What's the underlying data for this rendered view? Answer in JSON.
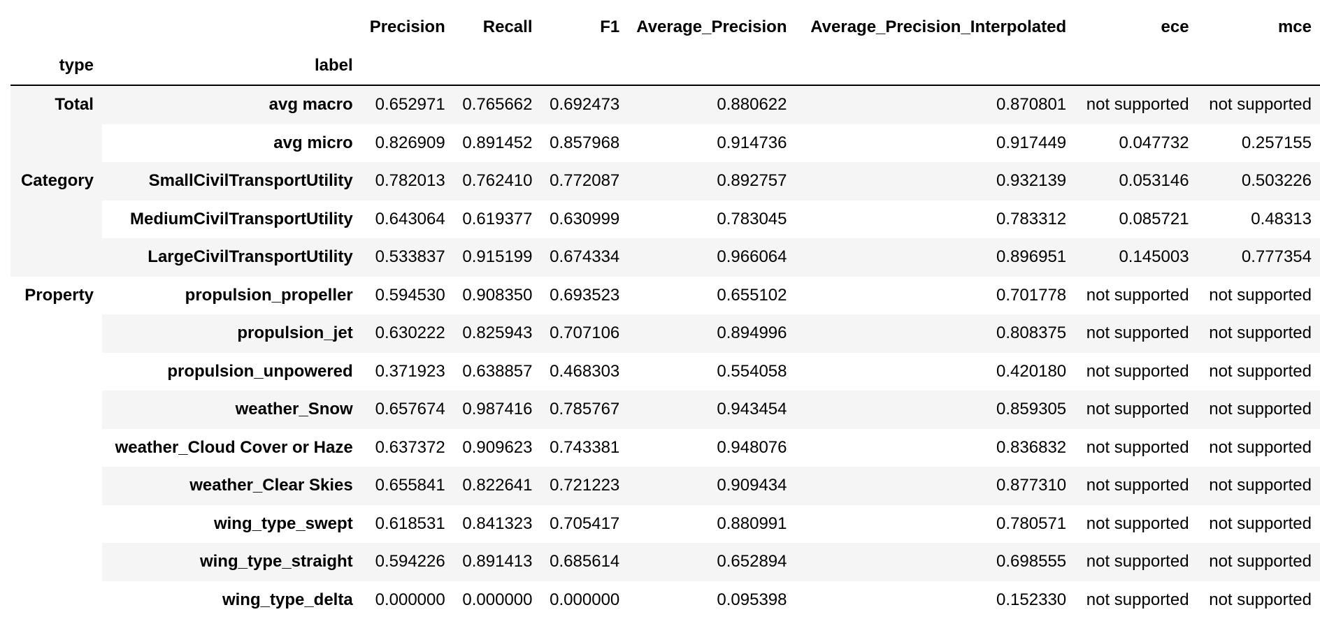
{
  "columns": [
    "Precision",
    "Recall",
    "F1",
    "Average_Precision",
    "Average_Precision_Interpolated",
    "ece",
    "mce"
  ],
  "index_names": [
    "type",
    "label"
  ],
  "groups": [
    {
      "type": "Total",
      "rows": [
        {
          "label": "avg macro",
          "values": [
            "0.652971",
            "0.765662",
            "0.692473",
            "0.880622",
            "0.870801",
            "not supported",
            "not supported"
          ]
        },
        {
          "label": "avg micro",
          "values": [
            "0.826909",
            "0.891452",
            "0.857968",
            "0.914736",
            "0.917449",
            "0.047732",
            "0.257155"
          ]
        }
      ]
    },
    {
      "type": "Category",
      "rows": [
        {
          "label": "SmallCivilTransportUtility",
          "values": [
            "0.782013",
            "0.762410",
            "0.772087",
            "0.892757",
            "0.932139",
            "0.053146",
            "0.503226"
          ]
        },
        {
          "label": "MediumCivilTransportUtility",
          "values": [
            "0.643064",
            "0.619377",
            "0.630999",
            "0.783045",
            "0.783312",
            "0.085721",
            "0.48313"
          ]
        },
        {
          "label": "LargeCivilTransportUtility",
          "values": [
            "0.533837",
            "0.915199",
            "0.674334",
            "0.966064",
            "0.896951",
            "0.145003",
            "0.777354"
          ]
        }
      ]
    },
    {
      "type": "Property",
      "rows": [
        {
          "label": "propulsion_propeller",
          "values": [
            "0.594530",
            "0.908350",
            "0.693523",
            "0.655102",
            "0.701778",
            "not supported",
            "not supported"
          ]
        },
        {
          "label": "propulsion_jet",
          "values": [
            "0.630222",
            "0.825943",
            "0.707106",
            "0.894996",
            "0.808375",
            "not supported",
            "not supported"
          ]
        },
        {
          "label": "propulsion_unpowered",
          "values": [
            "0.371923",
            "0.638857",
            "0.468303",
            "0.554058",
            "0.420180",
            "not supported",
            "not supported"
          ]
        },
        {
          "label": "weather_Snow",
          "values": [
            "0.657674",
            "0.987416",
            "0.785767",
            "0.943454",
            "0.859305",
            "not supported",
            "not supported"
          ]
        },
        {
          "label": "weather_Cloud Cover or Haze",
          "values": [
            "0.637372",
            "0.909623",
            "0.743381",
            "0.948076",
            "0.836832",
            "not supported",
            "not supported"
          ]
        },
        {
          "label": "weather_Clear Skies",
          "values": [
            "0.655841",
            "0.822641",
            "0.721223",
            "0.909434",
            "0.877310",
            "not supported",
            "not supported"
          ]
        },
        {
          "label": "wing_type_swept",
          "values": [
            "0.618531",
            "0.841323",
            "0.705417",
            "0.880991",
            "0.780571",
            "not supported",
            "not supported"
          ]
        },
        {
          "label": "wing_type_straight",
          "values": [
            "0.594226",
            "0.891413",
            "0.685614",
            "0.652894",
            "0.698555",
            "not supported",
            "not supported"
          ]
        },
        {
          "label": "wing_type_delta",
          "values": [
            "0.000000",
            "0.000000",
            "0.000000",
            "0.095398",
            "0.152330",
            "not supported",
            "not supported"
          ]
        }
      ]
    }
  ],
  "colors": {
    "stripe": "#f5f5f5",
    "background": "#ffffff",
    "header_rule": "#000000"
  }
}
